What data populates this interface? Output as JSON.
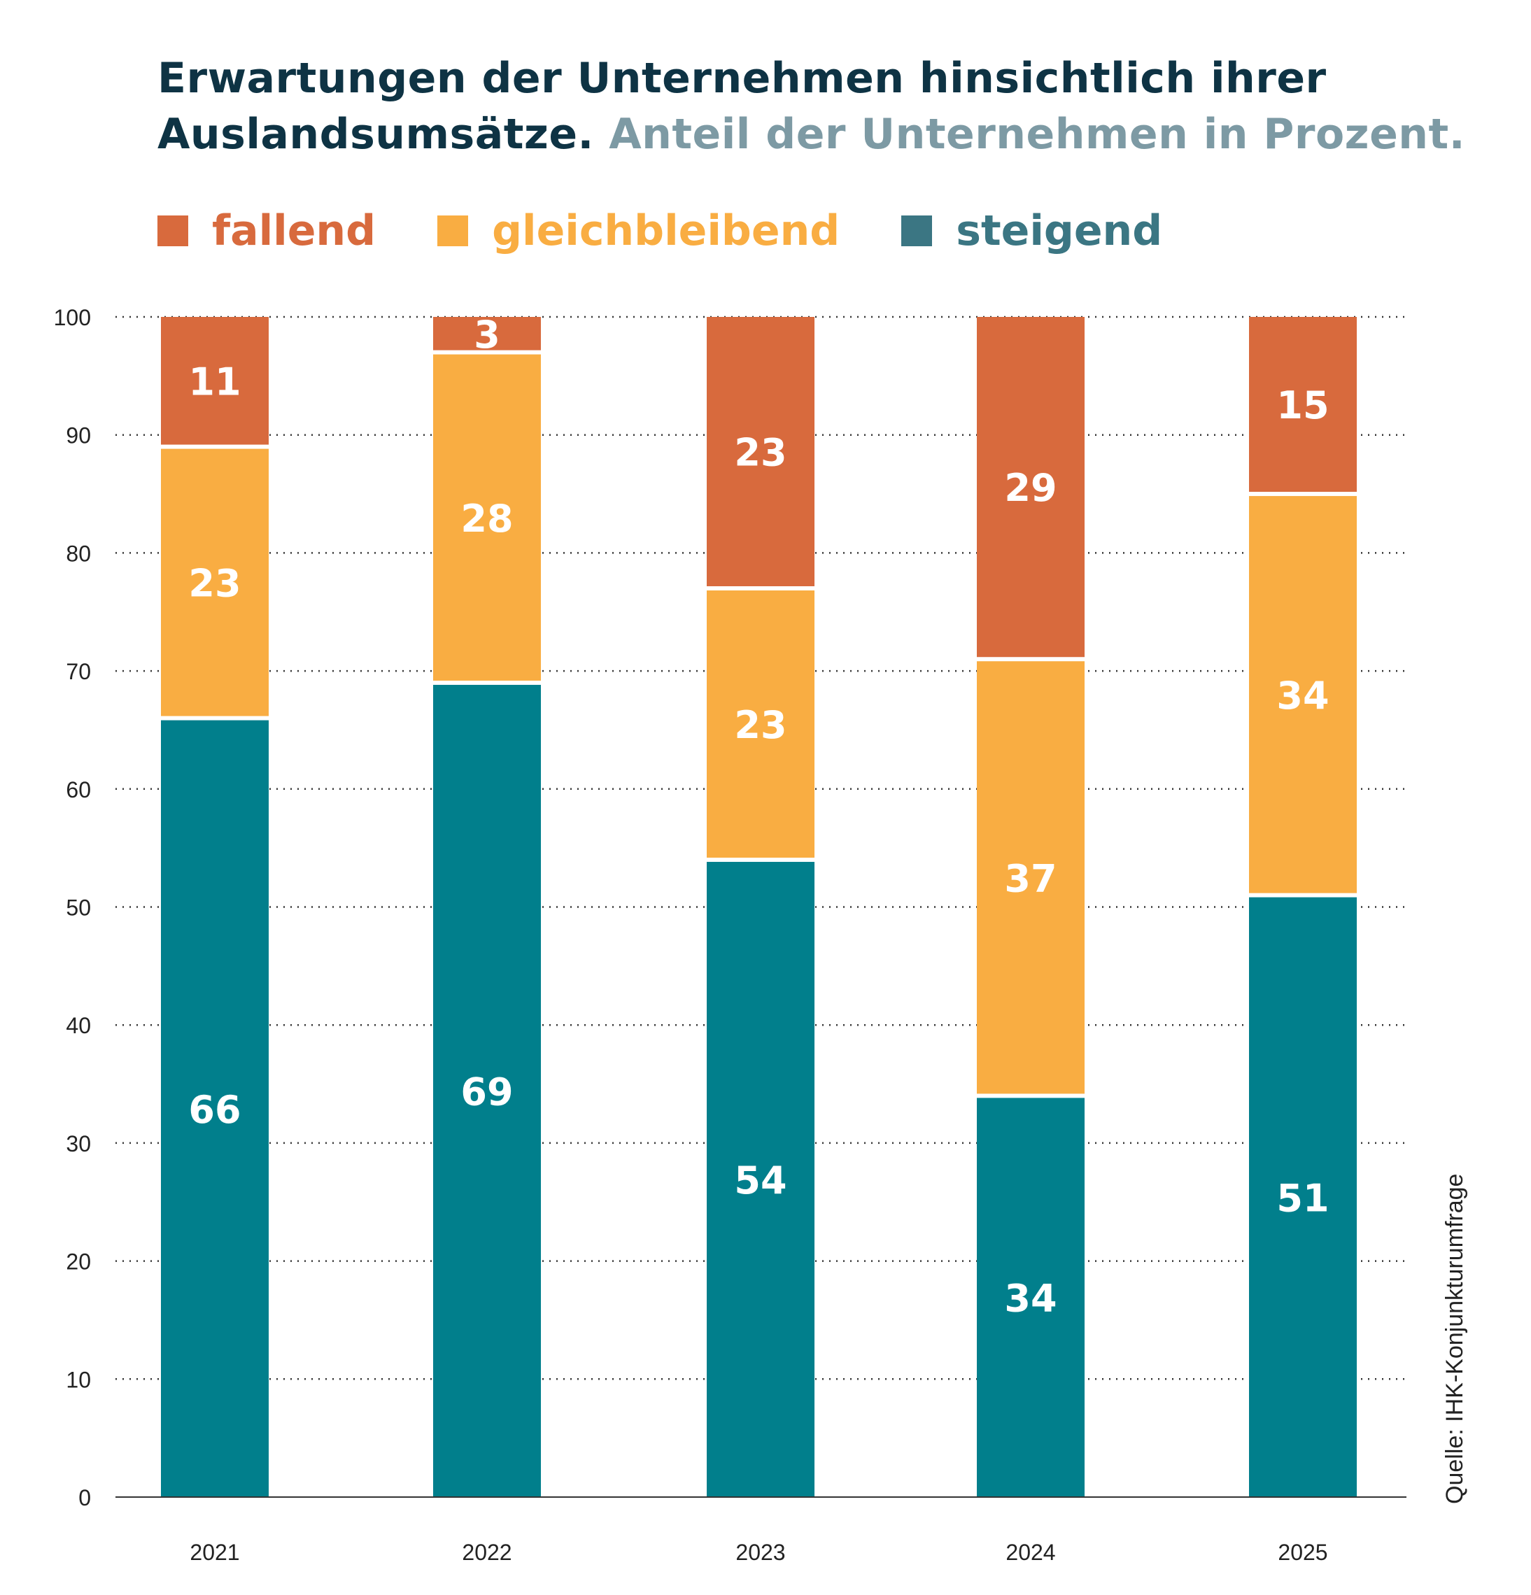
{
  "title_main": "Erwartungen der Unternehmen hinsichtlich ihrer Auslandsumsätze.",
  "title_sub": "Anteil der Unternehmen in Prozent.",
  "source": "Quelle: IHK-Konjunkturumfrage",
  "colors": {
    "fallend": "#d86a3d",
    "gleichbleibend": "#f9ad42",
    "steigend": "#017f8c",
    "legend_steigend_text": "#3b7683",
    "title": "#0e3344",
    "subtitle": "#7d9aa4"
  },
  "chart_data": {
    "type": "bar",
    "stacked": true,
    "categories": [
      "2021",
      "2022",
      "2023",
      "2024",
      "2025"
    ],
    "series": [
      {
        "name": "steigend",
        "values": [
          66,
          69,
          54,
          34,
          51
        ]
      },
      {
        "name": "gleichbleibend",
        "values": [
          23,
          28,
          23,
          37,
          34
        ]
      },
      {
        "name": "fallend",
        "values": [
          11,
          3,
          23,
          29,
          15
        ]
      }
    ],
    "legend": [
      "fallend",
      "gleichbleibend",
      "steigend"
    ],
    "legend_position": "top-left",
    "ylim": [
      0,
      100
    ],
    "yticks": [
      0,
      10,
      20,
      30,
      40,
      50,
      60,
      70,
      80,
      90,
      100
    ],
    "grid": true,
    "data_labels": true
  }
}
